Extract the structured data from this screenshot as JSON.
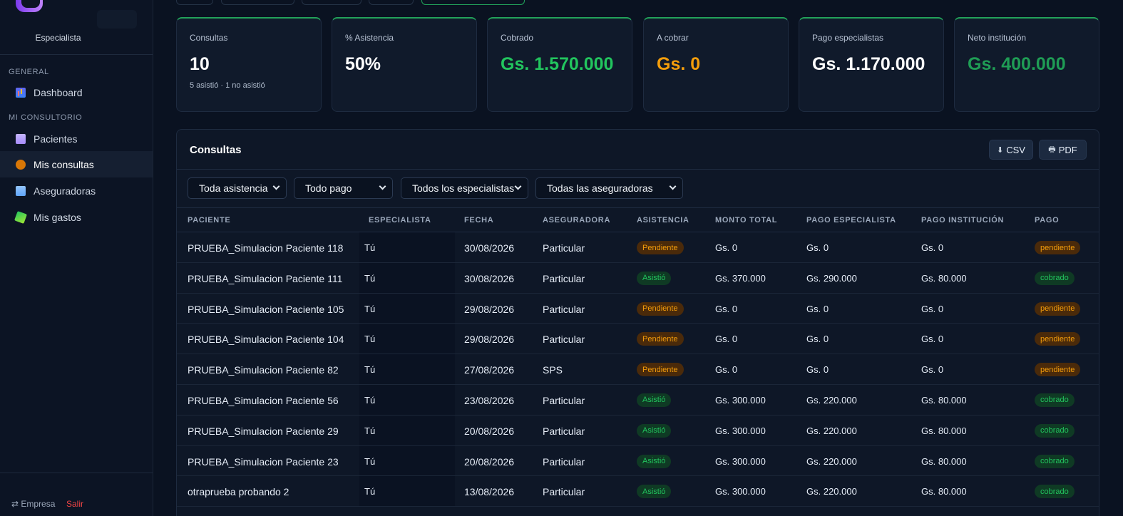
{
  "sidebar": {
    "role": "Especialista",
    "sections": [
      {
        "label": "GENERAL",
        "items": [
          {
            "label": "Dashboard",
            "icon": "chart-icon"
          }
        ]
      },
      {
        "label": "MI CONSULTORIO",
        "items": [
          {
            "label": "Pacientes",
            "icon": "patients-icon"
          },
          {
            "label": "Mis consultas",
            "icon": "money-bag-icon",
            "active": true
          },
          {
            "label": "Aseguradoras",
            "icon": "building-icon"
          },
          {
            "label": "Mis gastos",
            "icon": "money-wings-icon"
          }
        ]
      }
    ],
    "footer": {
      "empresa": "⇄ Empresa",
      "salir": "Salir"
    }
  },
  "stats": [
    {
      "label": "Consultas",
      "value": "10",
      "sub": "5 asistió · 1 no asistió",
      "color": "#ffffff"
    },
    {
      "label": "% Asistencia",
      "value": "50%",
      "color": "#ffffff"
    },
    {
      "label": "Cobrado",
      "value": "Gs. 1.570.000",
      "color": "#22c55e"
    },
    {
      "label": "A cobrar",
      "value": "Gs. 0",
      "color": "#f59e0b"
    },
    {
      "label": "Pago especialistas",
      "value": "Gs. 1.170.000",
      "color": "#ffffff"
    },
    {
      "label": "Neto institución",
      "value": "Gs. 400.000",
      "color": "#1f9d55"
    }
  ],
  "panel": {
    "title": "Consultas",
    "csv_label": "CSV",
    "pdf_label": "PDF",
    "filters": [
      "Toda asistencia",
      "Todo pago",
      "Todos los especialistas",
      "Todas las aseguradoras"
    ]
  },
  "table": {
    "columns": [
      "PACIENTE",
      "ESPECIALISTA",
      "FECHA",
      "ASEGURADORA",
      "ASISTENCIA",
      "MONTO TOTAL",
      "PAGO ESPECIALISTA",
      "PAGO INSTITUCIÓN",
      "PAGO"
    ],
    "rows": [
      {
        "paciente": "PRUEBA_Simulacion Paciente 118",
        "especialista": "Tú",
        "fecha": "30/08/2026",
        "aseguradora": "Particular",
        "asistencia": "Pendiente",
        "monto": "Gs. 0",
        "pago_esp": "Gs. 0",
        "pago_inst": "Gs. 0",
        "pago": "pendiente"
      },
      {
        "paciente": "PRUEBA_Simulacion Paciente 111",
        "especialista": "Tú",
        "fecha": "30/08/2026",
        "aseguradora": "Particular",
        "asistencia": "Asistió",
        "monto": "Gs. 370.000",
        "pago_esp": "Gs. 290.000",
        "pago_inst": "Gs. 80.000",
        "pago": "cobrado"
      },
      {
        "paciente": "PRUEBA_Simulacion Paciente 105",
        "especialista": "Tú",
        "fecha": "29/08/2026",
        "aseguradora": "Particular",
        "asistencia": "Pendiente",
        "monto": "Gs. 0",
        "pago_esp": "Gs. 0",
        "pago_inst": "Gs. 0",
        "pago": "pendiente"
      },
      {
        "paciente": "PRUEBA_Simulacion Paciente 104",
        "especialista": "Tú",
        "fecha": "29/08/2026",
        "aseguradora": "Particular",
        "asistencia": "Pendiente",
        "monto": "Gs. 0",
        "pago_esp": "Gs. 0",
        "pago_inst": "Gs. 0",
        "pago": "pendiente"
      },
      {
        "paciente": "PRUEBA_Simulacion Paciente 82",
        "especialista": "Tú",
        "fecha": "27/08/2026",
        "aseguradora": "SPS",
        "asistencia": "Pendiente",
        "monto": "Gs. 0",
        "pago_esp": "Gs. 0",
        "pago_inst": "Gs. 0",
        "pago": "pendiente"
      },
      {
        "paciente": "PRUEBA_Simulacion Paciente 56",
        "especialista": "Tú",
        "fecha": "23/08/2026",
        "aseguradora": "Particular",
        "asistencia": "Asistió",
        "monto": "Gs. 300.000",
        "pago_esp": "Gs. 220.000",
        "pago_inst": "Gs. 80.000",
        "pago": "cobrado"
      },
      {
        "paciente": "PRUEBA_Simulacion Paciente 29",
        "especialista": "Tú",
        "fecha": "20/08/2026",
        "aseguradora": "Particular",
        "asistencia": "Asistió",
        "monto": "Gs. 300.000",
        "pago_esp": "Gs. 220.000",
        "pago_inst": "Gs. 80.000",
        "pago": "cobrado"
      },
      {
        "paciente": "PRUEBA_Simulacion Paciente 23",
        "especialista": "Tú",
        "fecha": "20/08/2026",
        "aseguradora": "Particular",
        "asistencia": "Asistió",
        "monto": "Gs. 300.000",
        "pago_esp": "Gs. 220.000",
        "pago_inst": "Gs. 80.000",
        "pago": "cobrado"
      },
      {
        "paciente": "otraprueba probando 2",
        "especialista": "Tú",
        "fecha": "13/08/2026",
        "aseguradora": "Particular",
        "asistencia": "Asistió",
        "monto": "Gs. 300.000",
        "pago_esp": "Gs. 220.000",
        "pago_inst": "Gs. 80.000",
        "pago": "cobrado"
      }
    ]
  }
}
